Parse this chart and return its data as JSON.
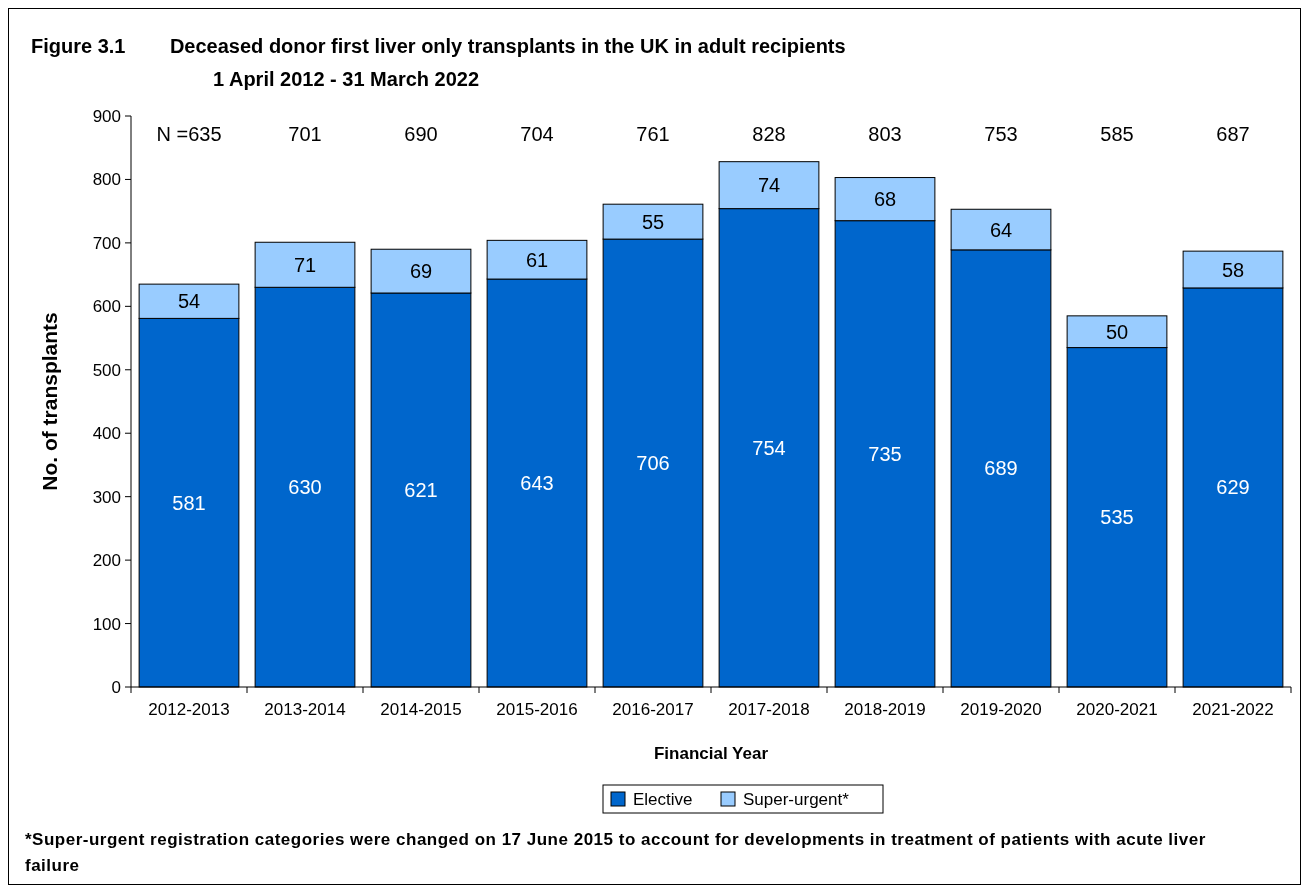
{
  "chart_data": {
    "type": "bar",
    "stacked": true,
    "title": "Figure 3.1        Deceased donor first liver only transplants in the UK in adult recipients",
    "subtitle": "1 April 2012 - 31 March 2022",
    "xlabel": "Financial Year",
    "ylabel": "No. of transplants",
    "categories": [
      "2012-2013",
      "2013-2014",
      "2014-2015",
      "2015-2016",
      "2016-2017",
      "2017-2018",
      "2018-2019",
      "2019-2020",
      "2020-2021",
      "2021-2022"
    ],
    "series": [
      {
        "name": "Elective",
        "color": "#0066cc",
        "values": [
          581,
          630,
          621,
          643,
          706,
          754,
          735,
          689,
          535,
          629
        ]
      },
      {
        "name": "Super-urgent*",
        "color": "#99ccff",
        "values": [
          54,
          71,
          69,
          61,
          55,
          74,
          68,
          64,
          50,
          58
        ]
      }
    ],
    "ylim": [
      0,
      900
    ],
    "yticks": [
      0,
      100,
      200,
      300,
      400,
      500,
      600,
      700,
      800,
      900
    ],
    "data_labels": true,
    "grid": false,
    "legend": "bottom",
    "annotations": [
      "N =635",
      "701",
      "690",
      "704",
      "761",
      "828",
      "803",
      "753",
      "585",
      "687",
      "*Super-urgent registration categories were changed on 17 June 2015 to account for developments in treatment of patients with acute liver failure"
    ]
  }
}
